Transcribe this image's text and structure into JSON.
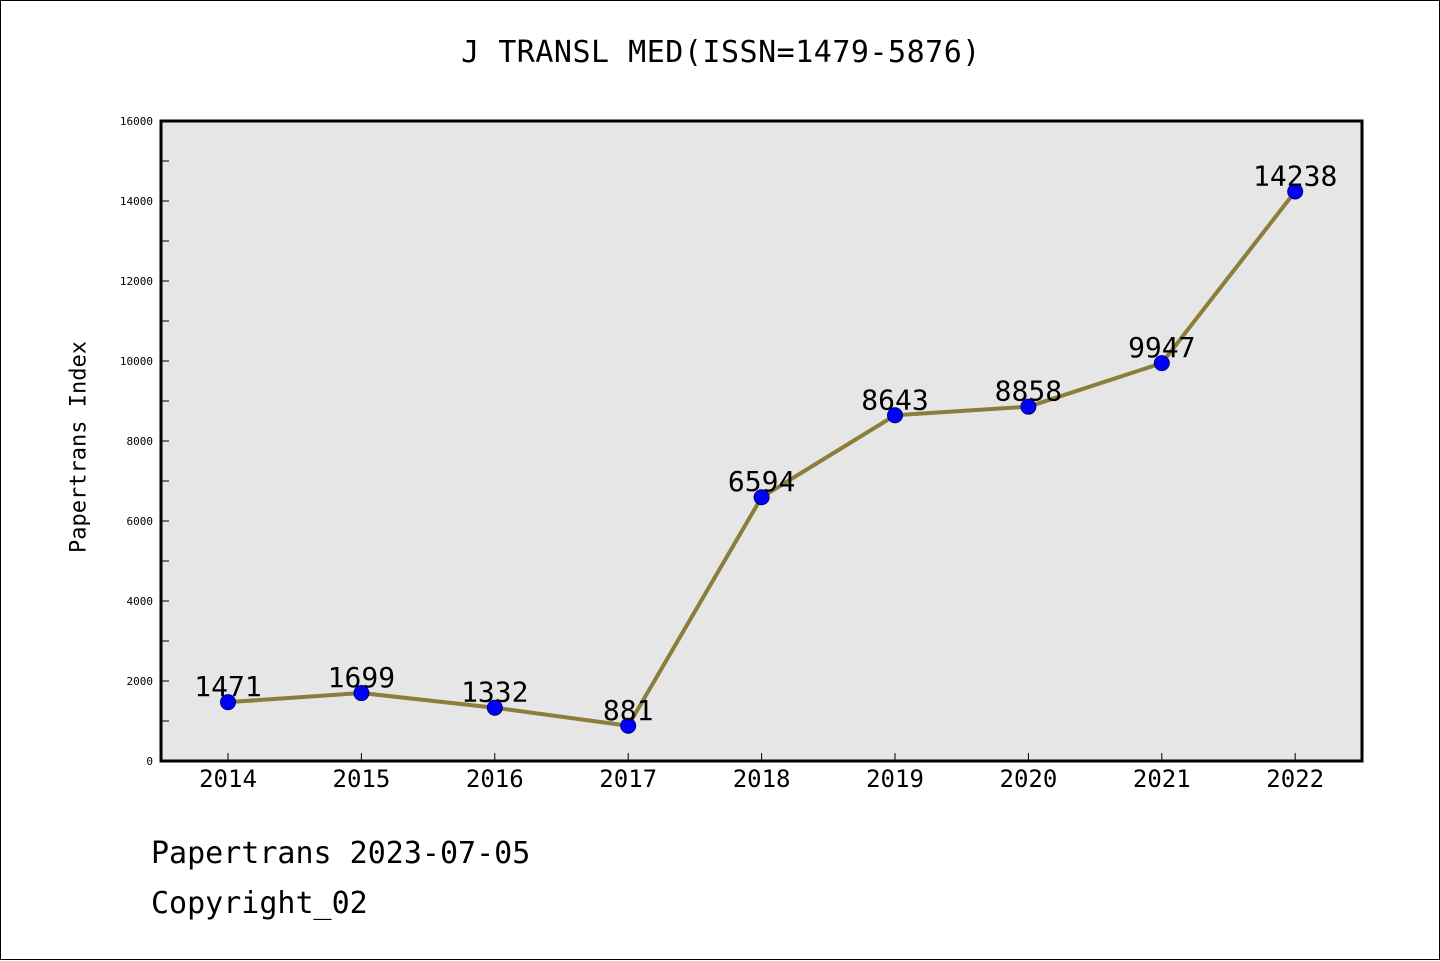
{
  "chart_data": {
    "type": "line",
    "title": "J TRANSL MED(ISSN=1479-5876)",
    "xlabel": "",
    "ylabel": "Papertrans Index",
    "categories": [
      "2014",
      "2015",
      "2016",
      "2017",
      "2018",
      "2019",
      "2020",
      "2021",
      "2022"
    ],
    "series": [
      {
        "values": [
          1471,
          1699,
          1332,
          881,
          6594,
          8643,
          8858,
          9947,
          14238
        ]
      }
    ],
    "ylim": [
      0,
      16000
    ],
    "y_ticks": [
      "0",
      "2000",
      "4000",
      "6000",
      "8000",
      "10000",
      "12000",
      "14000",
      "16000"
    ],
    "grid": false,
    "data_labels": true,
    "colors": {
      "line": "#8b7d3a",
      "marker": "#0000ff",
      "plot_background": "#e6e6e6"
    }
  },
  "footer": {
    "source": "Papertrans 2023-07-05",
    "copyright": "Copyright_02"
  }
}
